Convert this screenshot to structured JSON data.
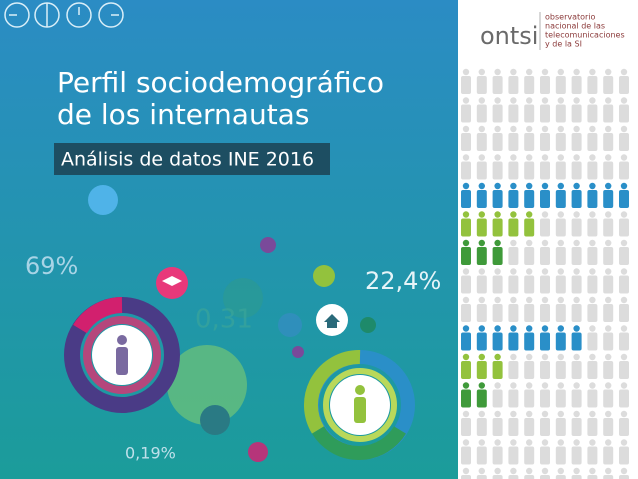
{
  "cover": {
    "title_lines": [
      "Perfil sociodemográfico",
      "de los internautas"
    ],
    "subtitle": "Análisis de datos INE 2016",
    "figures": [
      "69%",
      "22,4%",
      "0,31",
      "0,19%"
    ],
    "logo": {
      "name": "ontsi",
      "lines": [
        "observatorio",
        "nacional de las",
        "telecomunicaciones",
        "y de la SI"
      ]
    }
  }
}
